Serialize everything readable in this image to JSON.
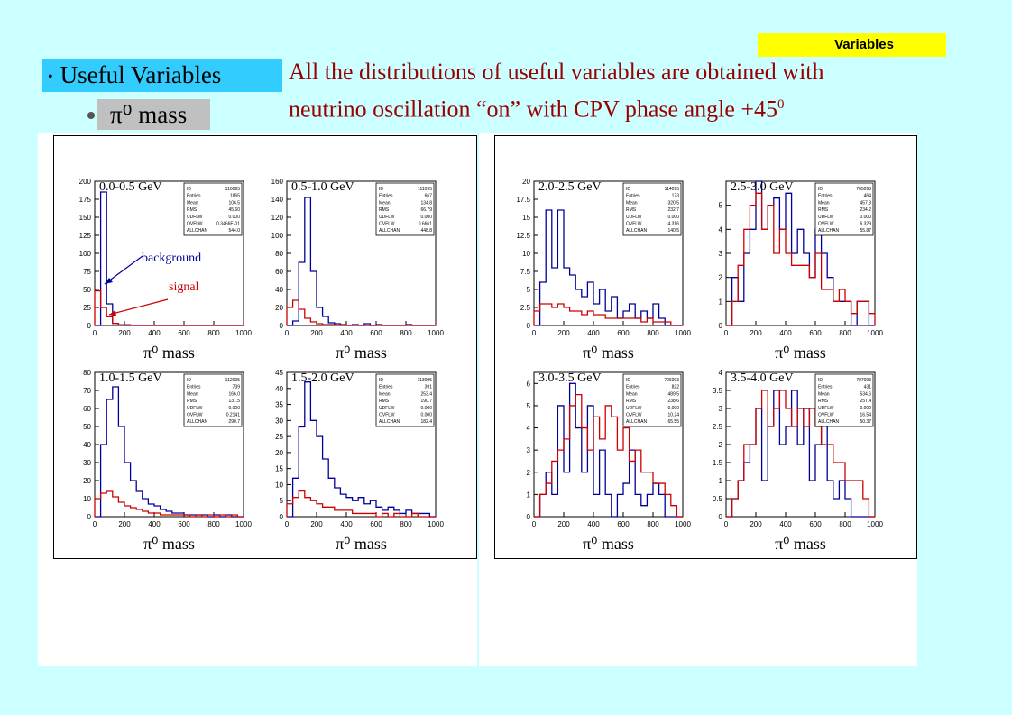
{
  "header": {
    "badge": "Variables",
    "section_title": "Useful Variables",
    "subsection": "π⁰ mass",
    "description_line1": "All the distributions of useful variables are obtained with",
    "description_line2_main": "neutrino oscillation “on” with CPV phase angle +45",
    "description_line2_sup": "0"
  },
  "colors": {
    "signal": "#cc0000",
    "background": "#000099",
    "text": "#990000"
  },
  "annotations": {
    "background_label": "background",
    "signal_label": "signal"
  },
  "chart_data": [
    {
      "type": "bar",
      "title": "0.0-0.5 GeV",
      "xlabel": "π⁰ mass",
      "xlim": [
        0,
        1000
      ],
      "ylim": [
        0,
        200
      ],
      "yticks": [
        0,
        25,
        50,
        75,
        100,
        125,
        150,
        175,
        200
      ],
      "xticks": [
        0,
        200,
        400,
        600,
        800,
        1000
      ],
      "stats": {
        "ID": "110095",
        "Entries": "1865",
        "Mean": "106.5",
        "RMS": "45.60",
        "UDFLW": "0.000",
        "OVFLW": "0.3466E-01",
        "ALLCHAN": "544.0"
      },
      "series": [
        {
          "name": "background",
          "values": [
            0,
            185,
            30,
            3,
            1,
            0,
            0,
            0,
            0,
            0,
            0,
            0,
            0,
            0,
            0,
            0,
            0,
            0,
            0,
            0,
            0,
            0,
            0,
            0,
            0
          ]
        },
        {
          "name": "signal",
          "values": [
            48,
            25,
            12,
            3,
            1,
            1,
            0,
            0,
            0,
            0,
            0,
            0,
            0,
            0,
            0,
            0,
            0,
            0,
            0,
            0,
            0,
            0,
            0,
            0,
            0
          ]
        }
      ]
    },
    {
      "type": "bar",
      "title": "0.5-1.0 GeV",
      "xlabel": "π⁰ mass",
      "xlim": [
        0,
        1000
      ],
      "ylim": [
        0,
        160
      ],
      "yticks": [
        0,
        20,
        40,
        60,
        80,
        100,
        120,
        140,
        160
      ],
      "xticks": [
        0,
        200,
        400,
        600,
        800,
        1000
      ],
      "stats": {
        "ID": "111095",
        "Entries": "667",
        "Mean": "134.8",
        "RMS": "66.79",
        "UDFLW": "0.000",
        "OVFLW": "0.6661",
        "ALLCHAN": "448.8"
      },
      "series": [
        {
          "name": "background",
          "values": [
            0,
            5,
            70,
            142,
            60,
            20,
            10,
            3,
            2,
            1,
            0,
            1,
            0,
            2,
            0,
            1,
            0,
            0,
            0,
            0,
            1,
            0,
            0,
            0,
            0
          ]
        },
        {
          "name": "signal",
          "values": [
            20,
            28,
            18,
            8,
            4,
            2,
            1,
            1,
            0,
            1,
            0,
            0,
            0,
            0,
            0,
            0,
            0,
            0,
            0,
            0,
            0,
            0,
            0,
            0,
            0
          ]
        }
      ]
    },
    {
      "type": "bar",
      "title": "1.0-1.5 GeV",
      "xlabel": "π⁰ mass",
      "xlim": [
        0,
        1000
      ],
      "ylim": [
        0,
        80
      ],
      "yticks": [
        0,
        10,
        20,
        30,
        40,
        50,
        60,
        70,
        80
      ],
      "xticks": [
        0,
        200,
        400,
        600,
        800,
        1000
      ],
      "stats": {
        "ID": "112095",
        "Entries": "739",
        "Mean": "166.0",
        "RMS": "131.5",
        "UDFLW": "0.000",
        "OVFLW": "0.2141",
        "ALLCHAN": "290.7"
      },
      "series": [
        {
          "name": "background",
          "values": [
            0,
            40,
            65,
            72,
            50,
            30,
            20,
            14,
            10,
            7,
            6,
            4,
            3,
            2,
            2,
            1,
            1,
            1,
            1,
            0,
            1,
            0,
            1,
            0,
            0
          ]
        },
        {
          "name": "signal",
          "values": [
            10,
            13,
            14,
            11,
            8,
            6,
            5,
            4,
            3,
            2,
            2,
            1,
            1,
            1,
            1,
            1,
            0,
            1,
            0,
            1,
            0,
            1,
            0,
            1,
            0
          ]
        }
      ]
    },
    {
      "type": "bar",
      "title": "1.5-2.0 GeV",
      "xlabel": "π⁰ mass",
      "xlim": [
        0,
        1000
      ],
      "ylim": [
        0,
        45
      ],
      "yticks": [
        0,
        5,
        10,
        15,
        20,
        25,
        30,
        35,
        40,
        45
      ],
      "xticks": [
        0,
        200,
        400,
        600,
        800,
        1000
      ],
      "stats": {
        "ID": "113095",
        "Entries": "391",
        "Mean": "253.4",
        "RMS": "190.7",
        "UDFLW": "0.000",
        "OVFLW": "0.000",
        "ALLCHAN": "182.4"
      },
      "series": [
        {
          "name": "background",
          "values": [
            0,
            12,
            28,
            42,
            30,
            25,
            18,
            12,
            9,
            7,
            6,
            5,
            6,
            4,
            5,
            3,
            2,
            3,
            2,
            1,
            2,
            1,
            1,
            1,
            0
          ]
        },
        {
          "name": "signal",
          "values": [
            4,
            6,
            8,
            6,
            5,
            4,
            3,
            3,
            2,
            2,
            2,
            1,
            1,
            1,
            1,
            0,
            1,
            0,
            1,
            0,
            0,
            1,
            0,
            0,
            0
          ]
        }
      ]
    },
    {
      "type": "bar",
      "title": "2.0-2.5 GeV",
      "xlabel": "π⁰ mass",
      "xlim": [
        0,
        1000
      ],
      "ylim": [
        0,
        20
      ],
      "yticks": [
        0,
        2.5,
        5,
        7.5,
        10,
        12.5,
        15,
        17.5,
        20
      ],
      "xticks": [
        0,
        200,
        400,
        600,
        800,
        1000
      ],
      "stats": {
        "ID": "114095",
        "Entries": "173",
        "Mean": "320.5",
        "RMS": "232.7",
        "UDFLW": "0.000",
        "OVFLW": "4.316",
        "ALLCHAN": "140.5"
      },
      "series": [
        {
          "name": "background",
          "values": [
            0,
            6,
            16,
            8,
            16,
            8,
            7,
            5,
            4,
            6,
            3,
            5,
            2,
            4,
            1,
            2,
            3,
            1,
            2,
            1,
            3,
            1,
            0,
            0,
            0
          ]
        },
        {
          "name": "signal",
          "values": [
            2,
            3,
            3,
            2.5,
            3,
            2.5,
            2,
            2,
            1.5,
            2,
            1.5,
            1.5,
            1,
            1,
            1,
            1,
            1,
            1,
            0.5,
            1,
            0.5,
            0.5,
            0.5,
            0,
            0
          ]
        }
      ]
    },
    {
      "type": "bar",
      "title": "2.5-3.0 GeV",
      "xlabel": "π⁰ mass",
      "xlim": [
        0,
        1000
      ],
      "ylim": [
        0,
        6
      ],
      "yticks": [
        0,
        1,
        2,
        3,
        4,
        5
      ],
      "xticks": [
        0,
        200,
        400,
        600,
        800,
        1000
      ],
      "stats": {
        "ID": "705093",
        "Entries": "464",
        "Mean": "457.8",
        "RMS": "234.2",
        "UDFLW": "0.000",
        "OVFLW": "6.329",
        "ALLCHAN": "55.87"
      },
      "series": [
        {
          "name": "background",
          "values": [
            0,
            2,
            1,
            3,
            4,
            6,
            4,
            5,
            5.3,
            4,
            5.5,
            3,
            4,
            3,
            2,
            4,
            3,
            2,
            1,
            1,
            1,
            0,
            1,
            1,
            0
          ]
        },
        {
          "name": "signal",
          "values": [
            0,
            1,
            2.5,
            4,
            5,
            5.5,
            4,
            5,
            3,
            4,
            3,
            2.5,
            2.5,
            2.5,
            2,
            3,
            1.5,
            1.5,
            1,
            1.5,
            1,
            0.5,
            1,
            1,
            0.5
          ]
        }
      ]
    },
    {
      "type": "bar",
      "title": "3.0-3.5 GeV",
      "xlabel": "π⁰ mass",
      "xlim": [
        0,
        1000
      ],
      "ylim": [
        0,
        6.5
      ],
      "yticks": [
        0,
        1,
        2,
        3,
        4,
        5,
        6
      ],
      "xticks": [
        0,
        200,
        400,
        600,
        800,
        1000
      ],
      "stats": {
        "ID": "706093",
        "Entries": "822",
        "Mean": "489.5",
        "RMS": "238.6",
        "UDFLW": "0.000",
        "OVFLW": "10.24",
        "ALLCHAN": "65.55"
      },
      "series": [
        {
          "name": "background",
          "values": [
            0,
            1,
            2,
            1,
            5,
            2,
            6,
            4,
            2,
            5,
            1,
            3,
            1,
            0,
            1,
            1.5,
            3,
            1,
            0.5,
            1,
            1.5,
            1,
            0,
            0,
            0
          ]
        },
        {
          "name": "signal",
          "values": [
            0,
            1,
            1.5,
            2.5,
            3,
            3.5,
            5,
            5.5,
            4,
            3,
            4.5,
            3.5,
            5,
            4.5,
            3,
            4,
            2.5,
            3,
            2,
            2,
            1.5,
            1.5,
            1,
            0.5,
            0
          ]
        }
      ]
    },
    {
      "type": "bar",
      "title": "3.5-4.0 GeV",
      "xlabel": "π⁰ mass",
      "xlim": [
        0,
        1000
      ],
      "ylim": [
        0,
        4
      ],
      "yticks": [
        0,
        0.5,
        1,
        1.5,
        2,
        2.5,
        3,
        3.5,
        4
      ],
      "xticks": [
        0,
        200,
        400,
        600,
        800,
        1000
      ],
      "stats": {
        "ID": "707093",
        "Entries": "431",
        "Mean": "534.6",
        "RMS": "257.4",
        "UDFLW": "0.000",
        "OVFLW": "16.54",
        "ALLCHAN": "50.37"
      },
      "series": [
        {
          "name": "background",
          "values": [
            0,
            0.5,
            1,
            1.5,
            2,
            3,
            1,
            2.5,
            3.5,
            2,
            2.5,
            3.5,
            2,
            3,
            1,
            2,
            3,
            1,
            0.5,
            1,
            0.5,
            0,
            0,
            0,
            0
          ]
        },
        {
          "name": "signal",
          "values": [
            0,
            0.5,
            1,
            2,
            2,
            3,
            3.5,
            2.5,
            3,
            3.5,
            3,
            2.5,
            3,
            2.5,
            3,
            2.5,
            2,
            2,
            1.5,
            1.5,
            1,
            1,
            1,
            0.5,
            0
          ]
        }
      ]
    }
  ]
}
